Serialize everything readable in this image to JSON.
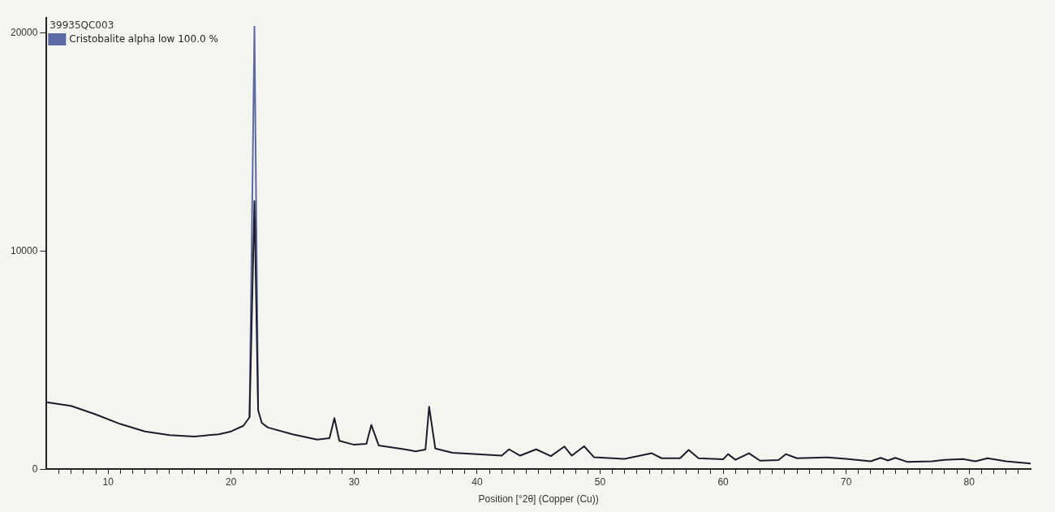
{
  "chart_data": {
    "type": "line",
    "xlabel": "Position [°2θ] (Copper (Cu))",
    "legend_title": "39935QC003",
    "legend": "top left",
    "marker": "none",
    "line_style": "solid",
    "grid": false,
    "xlim": [
      5,
      85
    ],
    "ylim": [
      0,
      20700
    ],
    "yticks": [
      0,
      10000,
      20000
    ],
    "xticks": [
      {
        "value": 6,
        "label": null
      },
      {
        "value": 7,
        "label": null
      },
      {
        "value": 8,
        "label": null
      },
      {
        "value": 9,
        "label": null
      },
      10,
      {
        "value": 11,
        "label": null
      },
      {
        "value": 12,
        "label": null
      },
      {
        "value": 13,
        "label": null
      },
      {
        "value": 14,
        "label": null
      },
      {
        "value": 15,
        "label": null
      },
      {
        "value": 16,
        "label": null
      },
      {
        "value": 17,
        "label": null
      },
      {
        "value": 18,
        "label": null
      },
      {
        "value": 19,
        "label": null
      },
      20,
      {
        "value": 21,
        "label": null
      },
      {
        "value": 22,
        "label": null
      },
      {
        "value": 23,
        "label": null
      },
      {
        "value": 24,
        "label": null
      },
      {
        "value": 25,
        "label": null
      },
      {
        "value": 26,
        "label": null
      },
      {
        "value": 27,
        "label": null
      },
      {
        "value": 28,
        "label": null
      },
      {
        "value": 29,
        "label": null
      },
      30,
      {
        "value": 31,
        "label": null
      },
      {
        "value": 32,
        "label": null
      },
      {
        "value": 33,
        "label": null
      },
      {
        "value": 34,
        "label": null
      },
      {
        "value": 35,
        "label": null
      },
      {
        "value": 36,
        "label": null
      },
      {
        "value": 37,
        "label": null
      },
      {
        "value": 38,
        "label": null
      },
      {
        "value": 39,
        "label": null
      },
      40,
      {
        "value": 41,
        "label": null
      },
      {
        "value": 42,
        "label": null
      },
      {
        "value": 43,
        "label": null
      },
      {
        "value": 44,
        "label": null
      },
      {
        "value": 45,
        "label": null
      },
      {
        "value": 46,
        "label": null
      },
      {
        "value": 47,
        "label": null
      },
      {
        "value": 48,
        "label": null
      },
      {
        "value": 49,
        "label": null
      },
      50,
      {
        "value": 51,
        "label": null
      },
      {
        "value": 52,
        "label": null
      },
      {
        "value": 53,
        "label": null
      },
      {
        "value": 54,
        "label": null
      },
      {
        "value": 55,
        "label": null
      },
      {
        "value": 56,
        "label": null
      },
      {
        "value": 57,
        "label": null
      },
      {
        "value": 58,
        "label": null
      },
      {
        "value": 59,
        "label": null
      },
      60,
      {
        "value": 61,
        "label": null
      },
      {
        "value": 62,
        "label": null
      },
      {
        "value": 63,
        "label": null
      },
      {
        "value": 64,
        "label": null
      },
      {
        "value": 65,
        "label": null
      },
      {
        "value": 66,
        "label": null
      },
      {
        "value": 67,
        "label": null
      },
      {
        "value": 68,
        "label": null
      },
      {
        "value": 69,
        "label": null
      },
      70,
      {
        "value": 71,
        "label": null
      },
      {
        "value": 72,
        "label": null
      },
      {
        "value": 73,
        "label": null
      },
      {
        "value": 74,
        "label": null
      },
      {
        "value": 75,
        "label": null
      },
      {
        "value": 76,
        "label": null
      },
      {
        "value": 77,
        "label": null
      },
      {
        "value": 78,
        "label": null
      },
      {
        "value": 79,
        "label": null
      },
      80,
      {
        "value": 81,
        "label": null
      },
      {
        "value": 82,
        "label": null
      },
      {
        "value": 83,
        "label": null
      },
      {
        "value": 84,
        "label": null
      }
    ],
    "x": [
      5,
      7,
      9,
      11,
      13,
      15,
      17,
      19,
      20,
      21,
      21.5,
      21.9,
      22.2,
      22.5,
      23,
      25,
      27,
      28,
      28.4,
      28.8,
      30,
      31,
      31.4,
      32,
      34,
      35,
      35.8,
      36.1,
      36.6,
      38,
      40,
      42,
      42.6,
      43.5,
      44.8,
      46,
      47.1,
      47.7,
      48.7,
      49.5,
      52,
      54.2,
      55,
      56.5,
      57.2,
      58,
      60,
      60.4,
      61,
      62.1,
      63,
      64.5,
      65.1,
      66,
      68.5,
      70,
      72,
      72.8,
      73.4,
      74,
      75,
      77,
      78,
      79.5,
      80.5,
      81.5,
      83,
      85
    ],
    "series": [
      {
        "name": "Cristobalite alpha low 100.0 %",
        "color": "#5b6aa3",
        "x": [
          21.5,
          21.9,
          22.2
        ],
        "values": [
          2380,
          20300,
          2700
        ]
      },
      {
        "color": "#1c1c2a",
        "values": [
          3070,
          2900,
          2510,
          2070,
          1730,
          1560,
          1500,
          1600,
          1730,
          1990,
          2380,
          12300,
          2700,
          2120,
          1910,
          1600,
          1360,
          1420,
          2340,
          1300,
          1120,
          1160,
          2030,
          1090,
          920,
          820,
          900,
          2860,
          950,
          750,
          690,
          620,
          910,
          620,
          910,
          600,
          1040,
          620,
          1050,
          550,
          470,
          730,
          500,
          500,
          880,
          500,
          450,
          690,
          430,
          730,
          390,
          420,
          690,
          500,
          540,
          470,
          360,
          520,
          400,
          520,
          330,
          360,
          430,
          460,
          360,
          500,
          360,
          260
        ]
      }
    ]
  }
}
